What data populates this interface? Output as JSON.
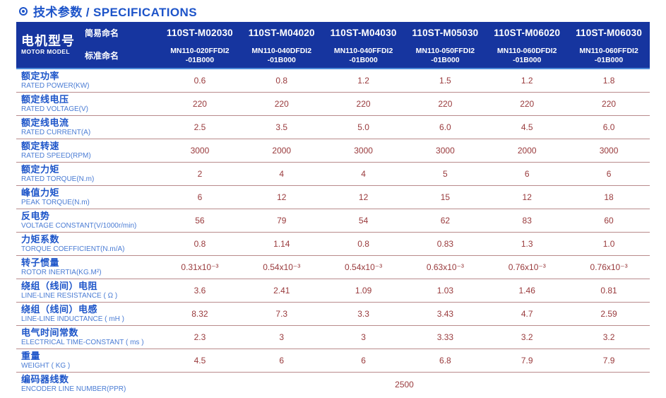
{
  "page": {
    "title": "技术参数 / SPECIFICATIONS",
    "bullet_icon": "circled-dot"
  },
  "colors": {
    "title_blue": "#1d54c9",
    "header_bg": "#16359f",
    "header_bottom_border": "#4d8ad9",
    "header_text": "#ffffff",
    "label_cn_blue": "#1d55c9",
    "label_en_blue": "#4a7cd4",
    "value_red": "#993a3c",
    "row_divider": "#b98b8c"
  },
  "table": {
    "corner": {
      "cn": "电机型号",
      "en": "MOTOR MODEL"
    },
    "naming": {
      "simple_label": "简易命名",
      "standard_label": "标准命名"
    },
    "models": [
      {
        "simple": "110ST-M02030",
        "standard_line1": "MN110-020FFDI2",
        "standard_line2": "-01B000"
      },
      {
        "simple": "110ST-M04020",
        "standard_line1": "MN110-040DFDI2",
        "standard_line2": "-01B000"
      },
      {
        "simple": "110ST-M04030",
        "standard_line1": "MN110-040FFDI2",
        "standard_line2": "-01B000"
      },
      {
        "simple": "110ST-M05030",
        "standard_line1": "MN110-050FFDI2",
        "standard_line2": "-01B000"
      },
      {
        "simple": "110ST-M06020",
        "standard_line1": "MN110-060DFDI2",
        "standard_line2": "-01B000"
      },
      {
        "simple": "110ST-M06030",
        "standard_line1": "MN110-060FFDI2",
        "standard_line2": "-01B000"
      }
    ],
    "rows": [
      {
        "cn": "额定功率",
        "en": "RATED POWER(KW)",
        "values": [
          "0.6",
          "0.8",
          "1.2",
          "1.5",
          "1.2",
          "1.8"
        ]
      },
      {
        "cn": "额定线电压",
        "en": "RATED VOLTAGE(V)",
        "values": [
          "220",
          "220",
          "220",
          "220",
          "220",
          "220"
        ]
      },
      {
        "cn": "额定线电流",
        "en": "RATED CURRENT(A)",
        "values": [
          "2.5",
          "3.5",
          "5.0",
          "6.0",
          "4.5",
          "6.0"
        ]
      },
      {
        "cn": "额定转速",
        "en": "RATED SPEED(RPM)",
        "values": [
          "3000",
          "2000",
          "3000",
          "3000",
          "2000",
          "3000"
        ]
      },
      {
        "cn": "额定力矩",
        "en": "RATED TORQUE(N.m)",
        "values": [
          "2",
          "4",
          "4",
          "5",
          "6",
          "6"
        ]
      },
      {
        "cn": "峰值力矩",
        "en": "PEAK TORQUE(N.m)",
        "values": [
          "6",
          "12",
          "12",
          "15",
          "12",
          "18"
        ]
      },
      {
        "cn": "反电势",
        "en": "VOLTAGE CONSTANT(V/1000r/min)",
        "values": [
          "56",
          "79",
          "54",
          "62",
          "83",
          "60"
        ]
      },
      {
        "cn": "力矩系数",
        "en": "TORQUE COEFFICIENT(N.m/A)",
        "values": [
          "0.8",
          "1.14",
          "0.8",
          "0.83",
          "1.3",
          "1.0"
        ]
      },
      {
        "cn": "转子惯量",
        "en": "ROTOR INERTIA(KG.M²)",
        "values": [
          "0.31x10⁻³",
          "0.54x10⁻³",
          "0.54x10⁻³",
          "0.63x10⁻³",
          "0.76x10⁻³",
          "0.76x10⁻³"
        ]
      },
      {
        "cn": "绕组（线间）电阻",
        "en": "LINE-LINE RESISTANCE ( Ω )",
        "values": [
          "3.6",
          "2.41",
          "1.09",
          "1.03",
          "1.46",
          "0.81"
        ]
      },
      {
        "cn": "绕组（线间）电感",
        "en": "LINE-LINE INDUCTANCE ( mH )",
        "values": [
          "8.32",
          "7.3",
          "3.3",
          "3.43",
          "4.7",
          "2.59"
        ]
      },
      {
        "cn": "电气时间常数",
        "en": "ELECTRICAL TIME-CONSTANT ( ms )",
        "values": [
          "2.3",
          "3",
          "3",
          "3.33",
          "3.2",
          "3.2"
        ]
      },
      {
        "cn": "重量",
        "en": "WEIGHT ( KG )",
        "values": [
          "4.5",
          "6",
          "6",
          "6.8",
          "7.9",
          "7.9"
        ]
      },
      {
        "cn": "编码器线数",
        "en": "ENCODER LINE NUMBER(PPR)",
        "merged_value": "2500"
      }
    ]
  }
}
